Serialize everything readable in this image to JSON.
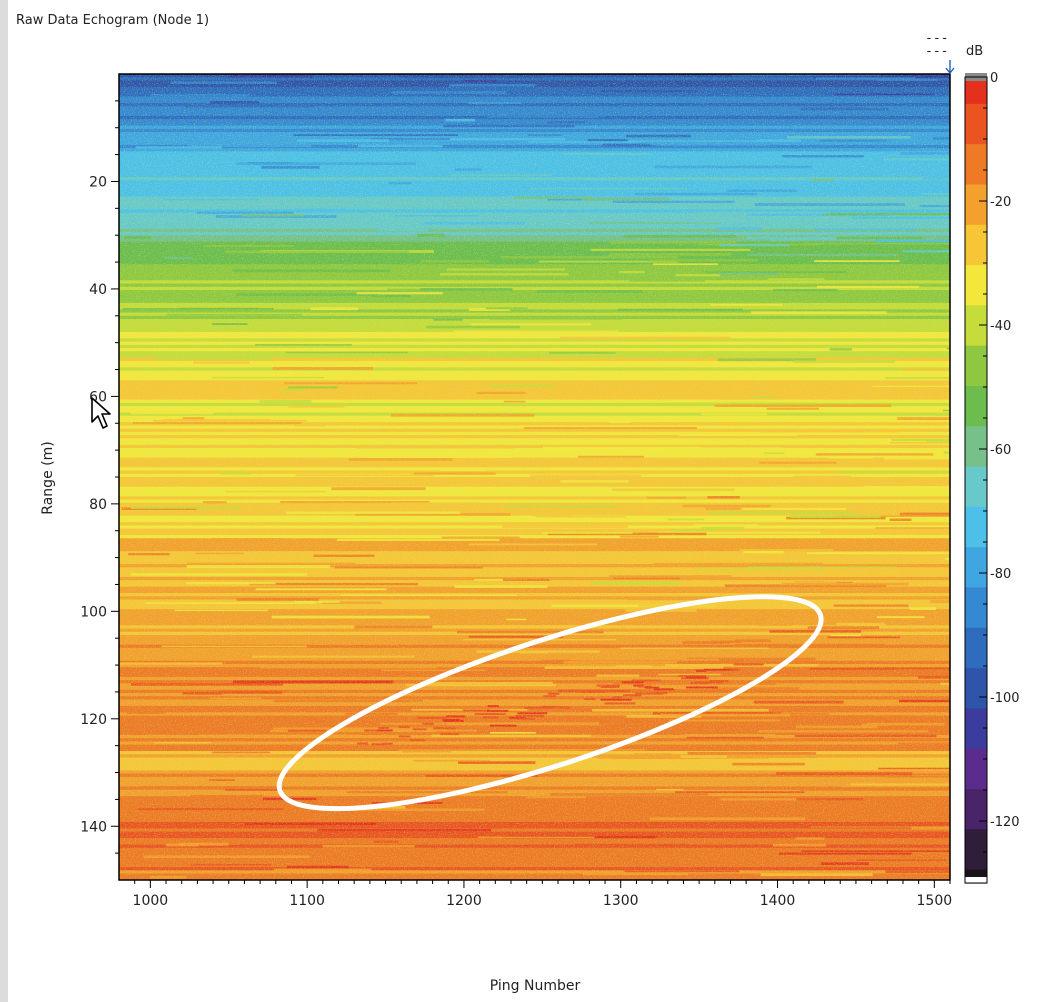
{
  "window": {
    "title": "Raw Data Echogram (Node 1)",
    "indicator_lines": [
      "---",
      "---"
    ]
  },
  "colors": {
    "palette": [
      "#ffffff",
      "#1a1218",
      "#2f1d3a",
      "#4a2468",
      "#5b2c8e",
      "#3c3c9e",
      "#2f55aa",
      "#2f6cbf",
      "#3588d2",
      "#3fa6e2",
      "#4cc0e8",
      "#67c9c9",
      "#76c18a",
      "#6cbd4e",
      "#8fc840",
      "#c5dc3a",
      "#f3e73c",
      "#f7c636",
      "#f4a02c",
      "#ef7a25",
      "#eb5420",
      "#e5301d",
      "#8a8a8a"
    ],
    "highlight": "#ffffff",
    "cursor_arrow": "#2060c0"
  },
  "chart_data": {
    "type": "heatmap",
    "title": "Raw Data Echogram (Node 1)",
    "xlabel": "Ping Number",
    "ylabel": "Range (m)",
    "xlim": [
      980,
      1510
    ],
    "ylim": [
      150,
      0
    ],
    "xticks": [
      1000,
      1100,
      1200,
      1300,
      1400,
      1500
    ],
    "yticks": [
      20,
      40,
      60,
      80,
      100,
      120,
      140
    ],
    "colorbar": {
      "label": "dB",
      "range": [
        -130,
        0
      ],
      "ticks": [
        0,
        -20,
        -40,
        -60,
        -80,
        -100,
        -120
      ]
    },
    "depth_profile_db": [
      {
        "range": 0,
        "db": -95
      },
      {
        "range": 8,
        "db": -85
      },
      {
        "range": 20,
        "db": -70
      },
      {
        "range": 28,
        "db": -64
      },
      {
        "range": 34,
        "db": -48
      },
      {
        "range": 45,
        "db": -42
      },
      {
        "range": 50,
        "db": -33
      },
      {
        "range": 70,
        "db": -30
      },
      {
        "range": 85,
        "db": -27
      },
      {
        "range": 100,
        "db": -22
      },
      {
        "range": 115,
        "db": -14
      },
      {
        "range": 130,
        "db": -20
      },
      {
        "range": 140,
        "db": -9
      },
      {
        "range": 150,
        "db": -14
      }
    ],
    "highlighted_feature": {
      "shape": "ellipse",
      "center_ping": 1255,
      "center_range": 117,
      "ping_halfspan": 145,
      "range_halfspan": 8,
      "angle_deg": -18
    }
  }
}
